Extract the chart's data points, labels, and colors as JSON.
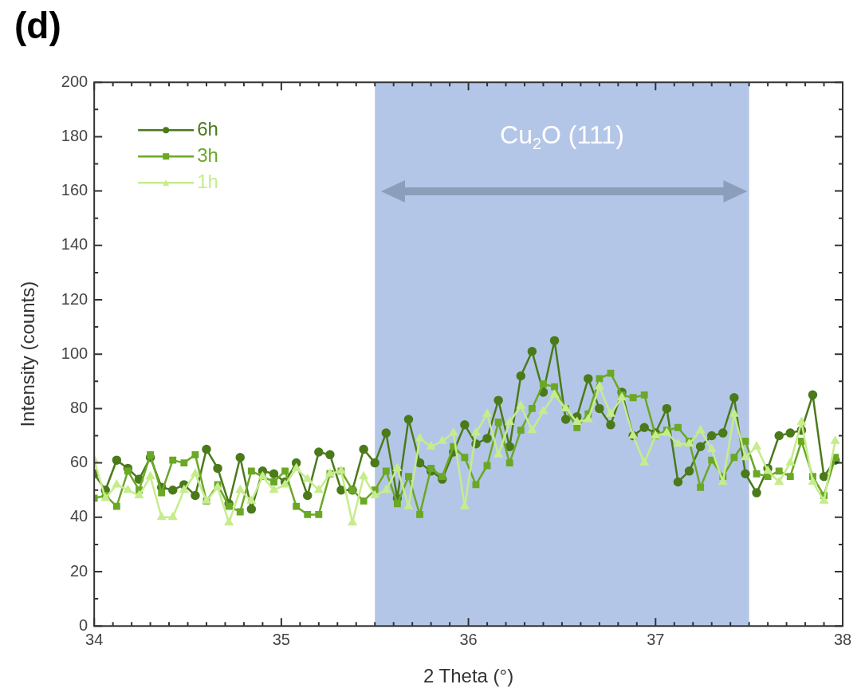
{
  "chart_data": {
    "type": "line",
    "title": "(d)",
    "xlabel": "2 Theta (°)",
    "ylabel": "Intensity (counts)",
    "xlim": [
      34,
      38
    ],
    "xticks": [
      34,
      35,
      36,
      37,
      38
    ],
    "ylim": [
      0,
      200
    ],
    "yticks": [
      0,
      20,
      40,
      60,
      80,
      100,
      120,
      140,
      160,
      180,
      200
    ],
    "grid": false,
    "legend": "top left",
    "line_style": "solid",
    "bands": [
      {
        "axis": "x",
        "from": 35.5,
        "to": 37.5,
        "color": "#b4c6e7"
      }
    ],
    "annotations": [
      "Cu$_{2}$O (111)"
    ],
    "series": [
      {
        "name": "6h",
        "color": "#4a7a1a",
        "marker": "circle",
        "values": [
          56,
          50,
          61,
          58,
          54,
          62,
          51,
          50,
          52,
          48,
          65,
          58,
          45,
          62,
          43,
          57,
          56,
          53,
          60,
          48,
          64,
          63,
          50,
          50,
          65,
          60,
          71,
          47,
          76,
          60,
          57,
          54,
          64,
          74,
          67,
          69,
          83,
          66,
          92,
          101,
          86,
          105,
          76,
          77,
          91,
          80,
          74,
          86,
          70,
          73,
          71,
          80,
          53,
          57,
          66,
          70,
          71,
          84,
          56,
          49,
          58,
          70,
          71,
          72,
          85,
          55,
          61
        ]
      },
      {
        "name": "3h",
        "color": "#6aa825",
        "marker": "square",
        "values": [
          47,
          48,
          44,
          57,
          50,
          63,
          49,
          61,
          60,
          63,
          46,
          52,
          44,
          42,
          57,
          55,
          53,
          57,
          44,
          41,
          41,
          56,
          57,
          50,
          46,
          50,
          57,
          45,
          55,
          41,
          58,
          55,
          66,
          62,
          52,
          59,
          75,
          60,
          72,
          80,
          89,
          88,
          80,
          73,
          78,
          91,
          93,
          85,
          84,
          85,
          70,
          72,
          73,
          68,
          51,
          61,
          55,
          62,
          68,
          56,
          55,
          57,
          55,
          68,
          55,
          48,
          62
        ]
      },
      {
        "name": "1h",
        "color": "#c6ec8c",
        "marker": "triangle",
        "values": [
          61,
          47,
          52,
          50,
          48,
          55,
          40,
          40,
          50,
          56,
          46,
          51,
          38,
          50,
          46,
          55,
          50,
          52,
          58,
          54,
          50,
          56,
          57,
          38,
          55,
          48,
          50,
          58,
          44,
          69,
          66,
          68,
          71,
          44,
          71,
          78,
          63,
          75,
          81,
          72,
          79,
          85,
          80,
          75,
          76,
          88,
          78,
          84,
          70,
          60,
          70,
          71,
          67,
          67,
          72,
          65,
          53,
          78,
          62,
          66,
          57,
          53,
          60,
          75,
          53,
          46,
          68
        ]
      }
    ],
    "x": [
      34,
      34.06,
      34.12,
      34.18,
      34.24,
      34.3,
      34.36,
      34.42,
      34.48,
      34.54,
      34.6,
      34.66,
      34.72,
      34.78,
      34.84,
      34.9,
      34.96,
      35.02,
      35.08,
      35.14,
      35.2,
      35.26,
      35.32,
      35.38,
      35.44,
      35.5,
      35.56,
      35.62,
      35.68,
      35.74,
      35.8,
      35.86,
      35.92,
      35.98,
      36.04,
      36.1,
      36.16,
      36.22,
      36.28,
      36.34,
      36.4,
      36.46,
      36.52,
      36.58,
      36.64,
      36.7,
      36.76,
      36.82,
      36.88,
      36.94,
      37,
      37.06,
      37.12,
      37.18,
      37.24,
      37.3,
      37.36,
      37.42,
      37.48,
      37.54,
      37.6,
      37.66,
      37.72,
      37.78,
      37.84,
      37.9,
      37.96
    ]
  }
}
